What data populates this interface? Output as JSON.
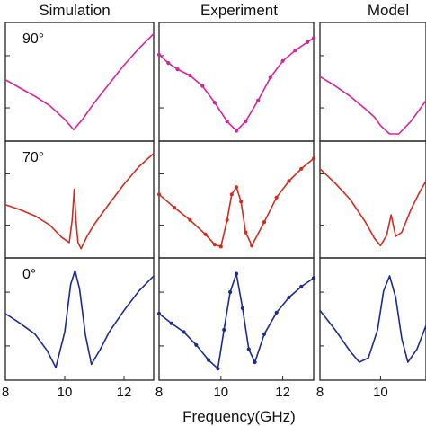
{
  "colors": {
    "90": "#d4239b",
    "70": "#d42a1e",
    "0": "#1c2a92"
  },
  "xlabel": "Frequency(GHz)",
  "chart_data": [
    {
      "type": "line",
      "title": "Simulation",
      "xlim": [
        8,
        13
      ],
      "x_ticks": [
        8,
        10,
        12
      ],
      "rows": [
        {
          "angle": "90°",
          "x": [
            8.0,
            8.5,
            9.0,
            9.5,
            10.0,
            10.3,
            10.6,
            11.0,
            11.5,
            12.0,
            12.5,
            13.0
          ],
          "y": [
            0.52,
            0.44,
            0.36,
            0.27,
            0.14,
            0.04,
            0.14,
            0.3,
            0.48,
            0.66,
            0.82,
            0.96
          ]
        },
        {
          "angle": "70°",
          "x": [
            8.0,
            8.5,
            9.0,
            9.5,
            9.9,
            10.15,
            10.25,
            10.32,
            10.38,
            10.45,
            10.55,
            10.75,
            11.0,
            11.5,
            12.0,
            12.5,
            13.0
          ],
          "y": [
            0.45,
            0.4,
            0.34,
            0.25,
            0.13,
            0.08,
            0.3,
            0.6,
            0.3,
            0.08,
            0.02,
            0.14,
            0.26,
            0.46,
            0.65,
            0.82,
            0.95
          ]
        },
        {
          "angle": "0°",
          "x": [
            8.0,
            8.5,
            9.0,
            9.4,
            9.7,
            10.0,
            10.2,
            10.35,
            10.5,
            10.7,
            10.9,
            11.2,
            11.5,
            12.0,
            12.5,
            13.0
          ],
          "y": [
            0.55,
            0.46,
            0.36,
            0.21,
            0.05,
            0.38,
            0.82,
            0.95,
            0.78,
            0.35,
            0.08,
            0.22,
            0.38,
            0.58,
            0.76,
            0.9
          ]
        }
      ]
    },
    {
      "type": "line",
      "title": "Experiment",
      "xlim": [
        8,
        13
      ],
      "x_ticks": [
        8,
        10,
        12
      ],
      "rows": [
        {
          "angle": "",
          "x": [
            8.0,
            8.3,
            8.6,
            9.0,
            9.4,
            9.8,
            10.2,
            10.5,
            10.8,
            11.2,
            11.6,
            12.0,
            12.4,
            12.8,
            13.0
          ],
          "y": [
            0.76,
            0.68,
            0.62,
            0.56,
            0.46,
            0.3,
            0.12,
            0.03,
            0.12,
            0.32,
            0.54,
            0.7,
            0.8,
            0.88,
            0.92
          ]
        },
        {
          "angle": "",
          "x": [
            8.0,
            8.5,
            9.0,
            9.5,
            9.8,
            10.0,
            10.2,
            10.35,
            10.5,
            10.65,
            10.8,
            11.0,
            11.4,
            11.8,
            12.2,
            12.6,
            13.0
          ],
          "y": [
            0.55,
            0.42,
            0.3,
            0.16,
            0.06,
            0.04,
            0.3,
            0.55,
            0.62,
            0.48,
            0.18,
            0.05,
            0.28,
            0.52,
            0.68,
            0.8,
            0.9
          ]
        },
        {
          "angle": "",
          "x": [
            8.0,
            8.4,
            8.8,
            9.2,
            9.6,
            9.9,
            10.1,
            10.3,
            10.5,
            10.7,
            10.9,
            11.1,
            11.4,
            11.8,
            12.2,
            12.6,
            13.0
          ],
          "y": [
            0.55,
            0.46,
            0.38,
            0.26,
            0.12,
            0.04,
            0.4,
            0.75,
            0.92,
            0.6,
            0.22,
            0.1,
            0.36,
            0.56,
            0.7,
            0.8,
            0.88
          ]
        }
      ]
    },
    {
      "type": "line",
      "title": "Model",
      "xlim": [
        8,
        11.5
      ],
      "x_ticks": [
        8,
        10
      ],
      "rows": [
        {
          "angle": "",
          "x": [
            8.0,
            8.5,
            9.0,
            9.5,
            9.8,
            10.0,
            10.3,
            10.6,
            11.0,
            11.3,
            11.5
          ],
          "y": [
            0.55,
            0.46,
            0.36,
            0.24,
            0.16,
            0.08,
            0.0,
            0.0,
            0.12,
            0.24,
            0.32
          ]
        },
        {
          "angle": "",
          "x": [
            8.0,
            8.5,
            9.0,
            9.5,
            9.8,
            10.0,
            10.2,
            10.35,
            10.5,
            10.7,
            11.0,
            11.3,
            11.5
          ],
          "y": [
            0.8,
            0.66,
            0.5,
            0.28,
            0.12,
            0.05,
            0.15,
            0.35,
            0.14,
            0.18,
            0.4,
            0.58,
            0.68
          ]
        },
        {
          "angle": "",
          "x": [
            8.0,
            8.5,
            9.0,
            9.3,
            9.6,
            9.9,
            10.1,
            10.3,
            10.5,
            10.7,
            10.9,
            11.2,
            11.5
          ],
          "y": [
            0.58,
            0.4,
            0.2,
            0.1,
            0.14,
            0.4,
            0.76,
            0.9,
            0.7,
            0.32,
            0.1,
            0.22,
            0.44
          ]
        }
      ]
    }
  ]
}
